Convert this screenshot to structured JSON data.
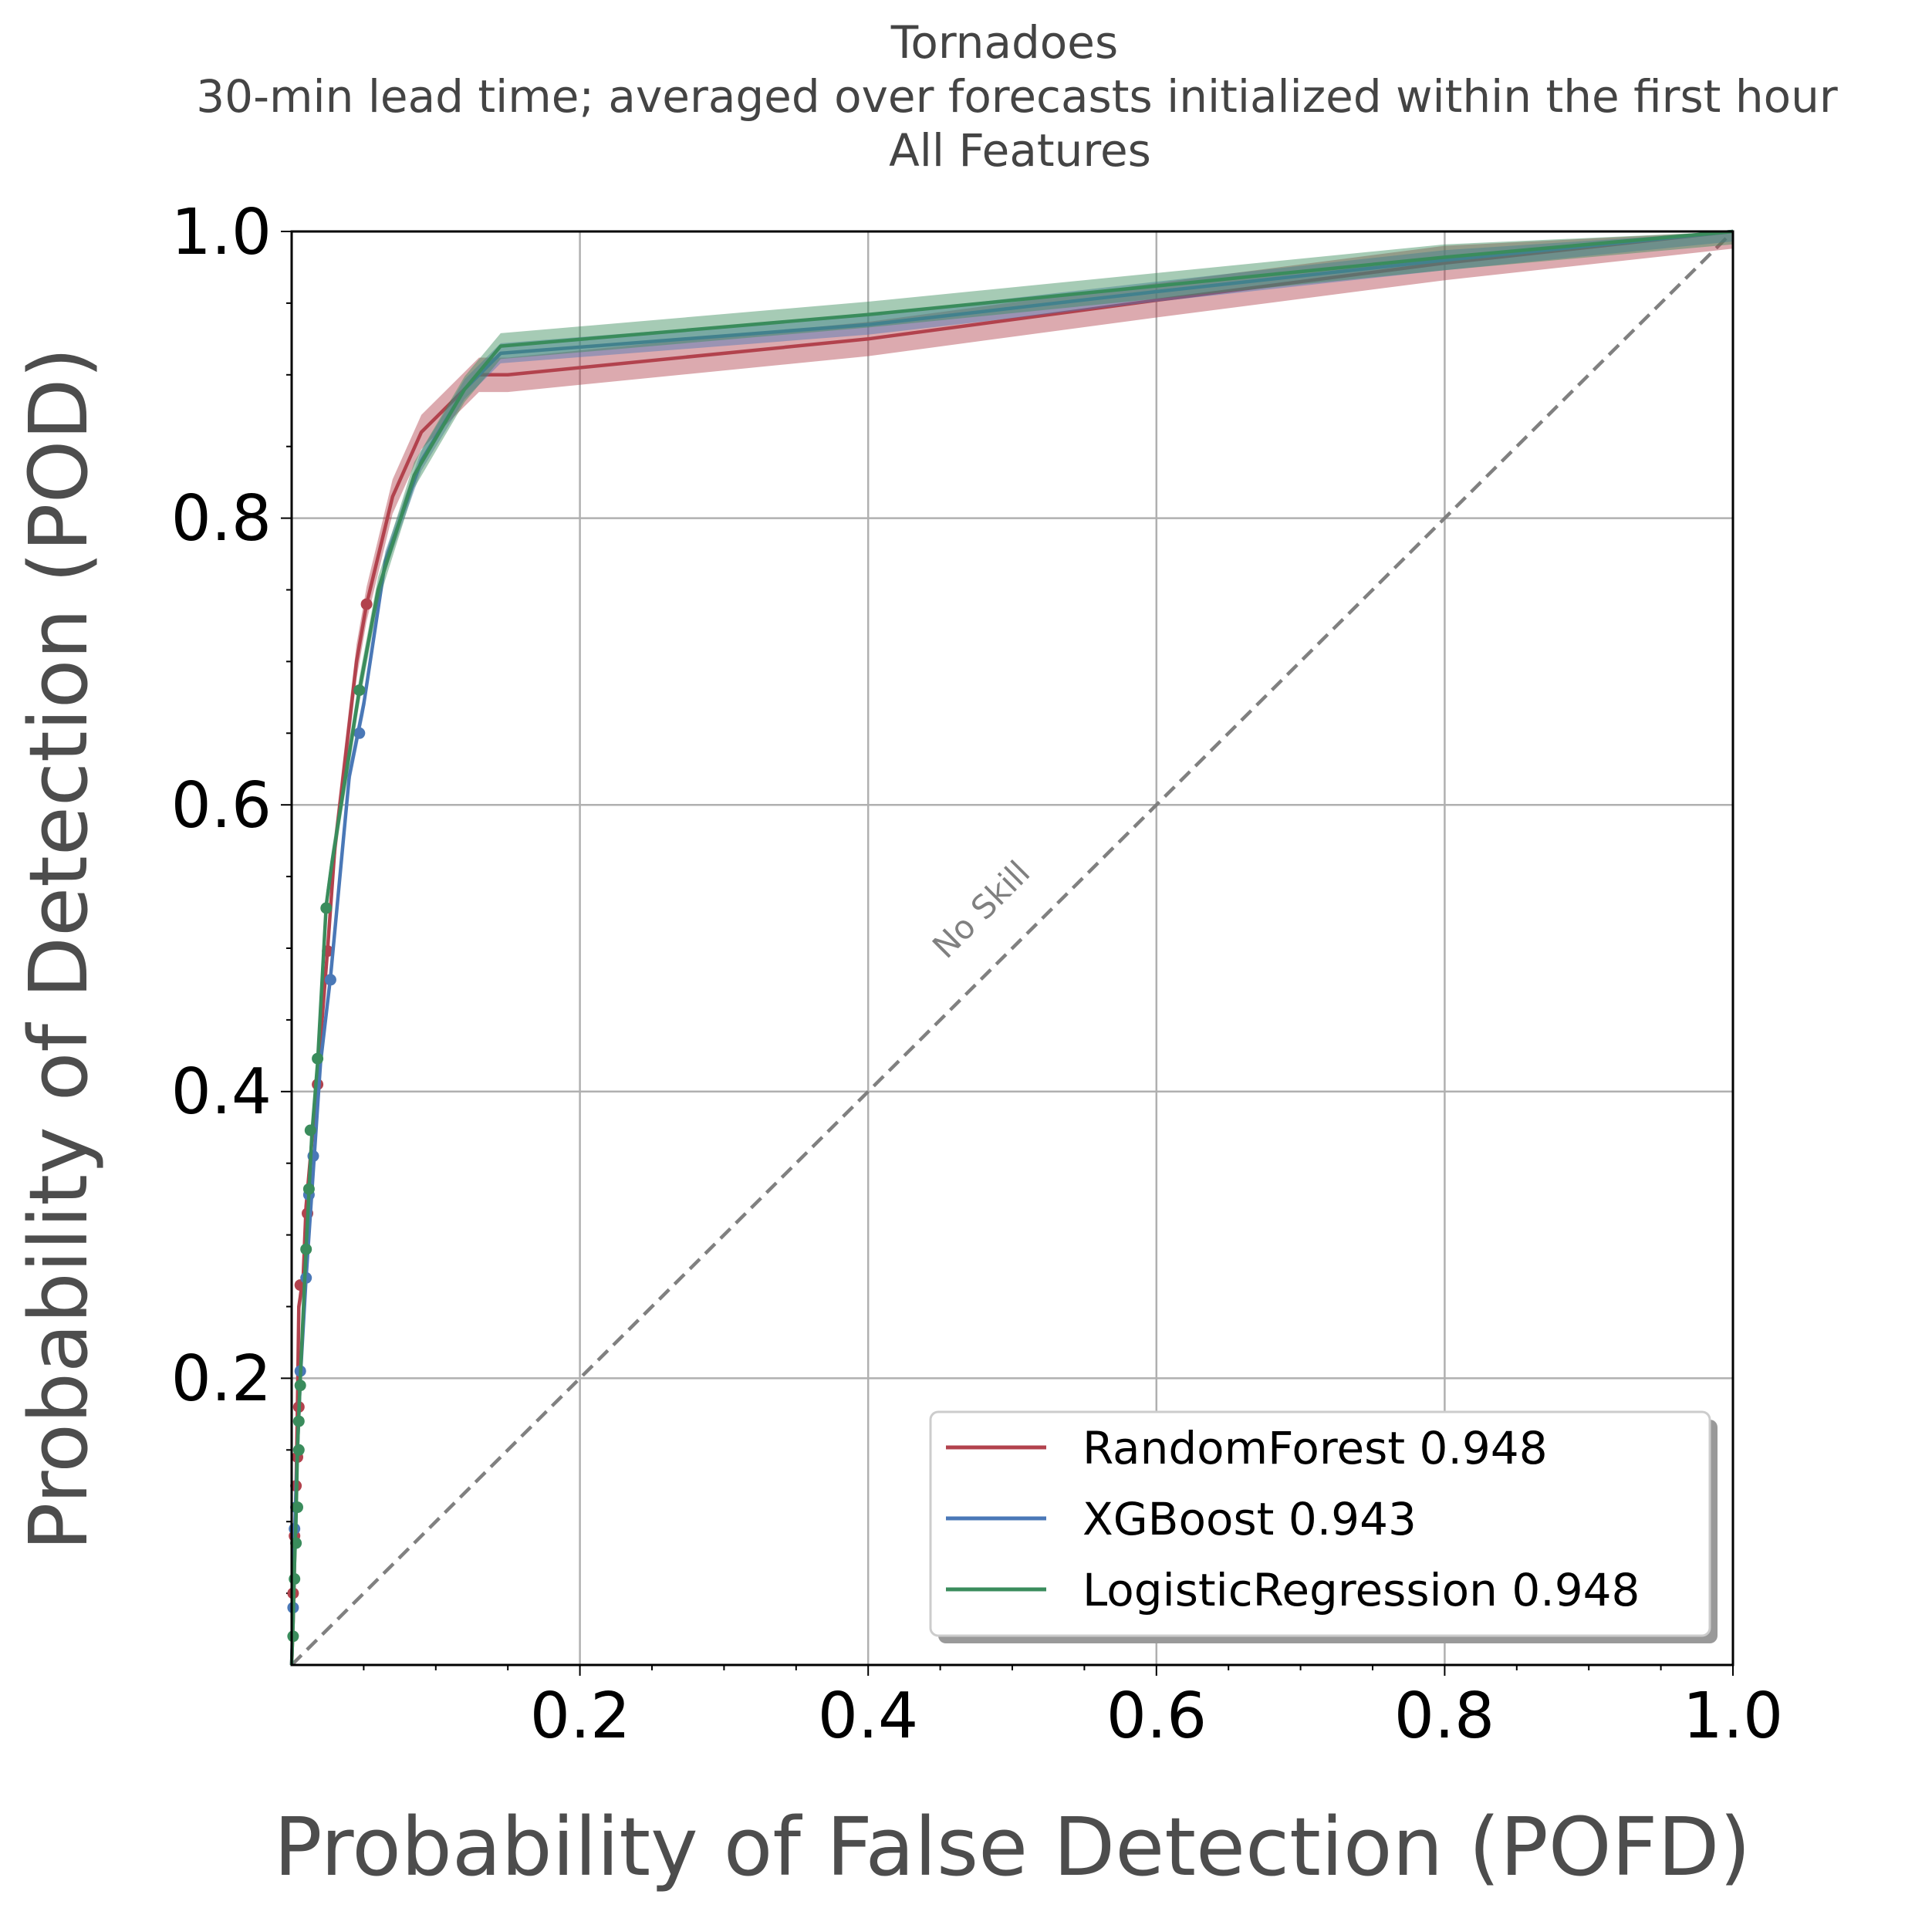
{
  "chart_data": {
    "type": "line",
    "title_lines": [
      "Tornadoes",
      "30-min lead time; averaged over forecasts initialized within the first hour",
      "All Features"
    ],
    "xlabel": "Probability of False Detection (POFD)",
    "ylabel": "Probability of Detection (POD)",
    "xlim": [
      0,
      1
    ],
    "ylim": [
      0,
      1
    ],
    "xticks": [
      "0.2",
      "0.4",
      "0.6",
      "0.8",
      "1.0"
    ],
    "yticks": [
      "0.2",
      "0.4",
      "0.6",
      "0.8",
      "1.0"
    ],
    "grid": true,
    "legend_position": "lower-right",
    "reference_line": {
      "label": "No Skill",
      "color": "#808080",
      "style": "dashed",
      "points": [
        [
          0,
          0
        ],
        [
          1,
          1
        ]
      ]
    },
    "series": [
      {
        "name": "RandomForest 0.948",
        "color": "#b2424d",
        "band": 0.012,
        "points": [
          [
            0,
            0
          ],
          [
            0.001,
            0.03
          ],
          [
            0.002,
            0.07
          ],
          [
            0.003,
            0.12
          ],
          [
            0.004,
            0.18
          ],
          [
            0.005,
            0.25
          ],
          [
            0.008,
            0.27
          ],
          [
            0.01,
            0.32
          ],
          [
            0.018,
            0.41
          ],
          [
            0.025,
            0.5
          ],
          [
            0.03,
            0.57
          ],
          [
            0.045,
            0.7
          ],
          [
            0.052,
            0.74
          ],
          [
            0.07,
            0.815
          ],
          [
            0.09,
            0.86
          ],
          [
            0.13,
            0.9
          ],
          [
            0.15,
            0.9
          ],
          [
            0.4,
            0.925
          ],
          [
            0.6,
            0.952
          ],
          [
            0.8,
            0.978
          ],
          [
            1,
            1
          ]
        ],
        "markers": [
          [
            0.001,
            0.05
          ],
          [
            0.002,
            0.09
          ],
          [
            0.003,
            0.125
          ],
          [
            0.004,
            0.145
          ],
          [
            0.005,
            0.18
          ],
          [
            0.006,
            0.265
          ],
          [
            0.011,
            0.315
          ],
          [
            0.018,
            0.405
          ],
          [
            0.025,
            0.498
          ],
          [
            0.052,
            0.74
          ]
        ]
      },
      {
        "name": "XGBoost 0.943",
        "color": "#4a78b7",
        "band": 0.007,
        "points": [
          [
            0,
            0
          ],
          [
            0.001,
            0.04
          ],
          [
            0.002,
            0.09
          ],
          [
            0.004,
            0.15
          ],
          [
            0.006,
            0.2
          ],
          [
            0.01,
            0.27
          ],
          [
            0.014,
            0.33
          ],
          [
            0.02,
            0.42
          ],
          [
            0.027,
            0.48
          ],
          [
            0.04,
            0.62
          ],
          [
            0.05,
            0.67
          ],
          [
            0.065,
            0.77
          ],
          [
            0.09,
            0.84
          ],
          [
            0.12,
            0.89
          ],
          [
            0.145,
            0.915
          ],
          [
            0.4,
            0.935
          ],
          [
            0.6,
            0.958
          ],
          [
            0.8,
            0.98
          ],
          [
            1,
            1
          ]
        ],
        "markers": [
          [
            0.001,
            0.04
          ],
          [
            0.002,
            0.095
          ],
          [
            0.003,
            0.11
          ],
          [
            0.006,
            0.205
          ],
          [
            0.01,
            0.27
          ],
          [
            0.012,
            0.328
          ],
          [
            0.015,
            0.355
          ],
          [
            0.027,
            0.478
          ],
          [
            0.047,
            0.65
          ]
        ]
      },
      {
        "name": "LogisticRegression 0.948",
        "color": "#3a8c5c",
        "band": 0.009,
        "points": [
          [
            0,
            0
          ],
          [
            0.001,
            0.03
          ],
          [
            0.002,
            0.07
          ],
          [
            0.003,
            0.1
          ],
          [
            0.004,
            0.15
          ],
          [
            0.006,
            0.2
          ],
          [
            0.01,
            0.29
          ],
          [
            0.012,
            0.33
          ],
          [
            0.014,
            0.37
          ],
          [
            0.018,
            0.42
          ],
          [
            0.024,
            0.53
          ],
          [
            0.028,
            0.56
          ],
          [
            0.047,
            0.68
          ],
          [
            0.06,
            0.75
          ],
          [
            0.085,
            0.83
          ],
          [
            0.12,
            0.89
          ],
          [
            0.145,
            0.92
          ],
          [
            0.4,
            0.942
          ],
          [
            0.6,
            0.962
          ],
          [
            0.8,
            0.982
          ],
          [
            1,
            1
          ]
        ],
        "markers": [
          [
            0.001,
            0.02
          ],
          [
            0.002,
            0.06
          ],
          [
            0.003,
            0.085
          ],
          [
            0.004,
            0.11
          ],
          [
            0.005,
            0.15
          ],
          [
            0.005,
            0.17
          ],
          [
            0.006,
            0.195
          ],
          [
            0.01,
            0.29
          ],
          [
            0.012,
            0.332
          ],
          [
            0.013,
            0.373
          ],
          [
            0.018,
            0.423
          ],
          [
            0.024,
            0.528
          ],
          [
            0.047,
            0.68
          ]
        ]
      }
    ]
  }
}
